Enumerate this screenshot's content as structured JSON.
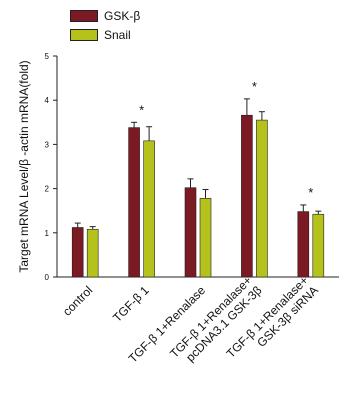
{
  "chart_data": {
    "type": "bar",
    "ylabel": "Target mRNA Level/β -actin mRNA(fold)",
    "ylim": [
      0,
      5
    ],
    "yticks": [
      0,
      1,
      2,
      3,
      4,
      5
    ],
    "categories": [
      [
        "control"
      ],
      [
        "TGF-β 1"
      ],
      [
        "TGF-β 1+Renalase"
      ],
      [
        "TGF-β 1+Renalase+",
        "pcDNA3.1 GSK-3β"
      ],
      [
        "TGF-β 1+Renalase+",
        "GSK-3β siRNA"
      ]
    ],
    "series": [
      {
        "name": "GSK-β",
        "color": "#7b1a22",
        "values": [
          1.12,
          3.38,
          2.02,
          3.66,
          1.48
        ],
        "errors": [
          0.1,
          0.12,
          0.2,
          0.37,
          0.15
        ]
      },
      {
        "name": "Snail",
        "color": "#b5c21c",
        "values": [
          1.08,
          3.08,
          1.78,
          3.55,
          1.42
        ],
        "errors": [
          0.06,
          0.32,
          0.2,
          0.19,
          0.07
        ]
      }
    ],
    "significance": [
      "",
      "*",
      "",
      "*",
      "*"
    ],
    "legend_position": "top-left"
  }
}
